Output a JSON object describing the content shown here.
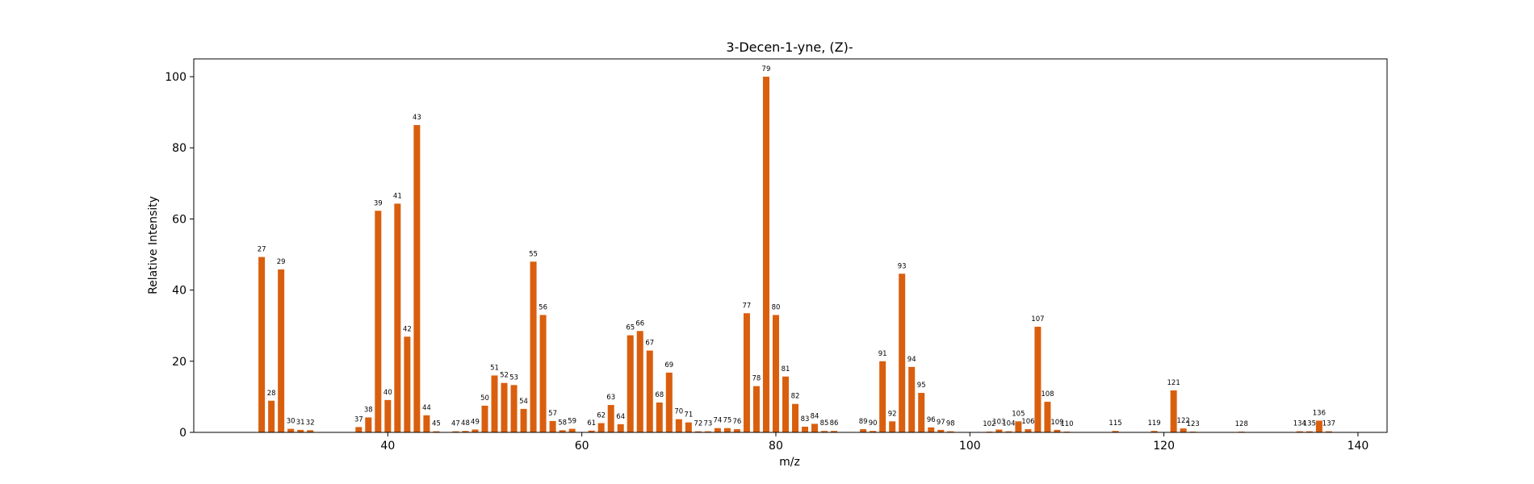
{
  "chart_data": {
    "type": "bar",
    "title": "3-Decen-1-yne, (Z)-",
    "xlabel": "m/z",
    "ylabel": "Relative Intensity",
    "xlim": [
      20,
      143
    ],
    "ylim": [
      0,
      105
    ],
    "xticks": [
      40,
      60,
      80,
      100,
      120,
      140
    ],
    "yticks": [
      0,
      20,
      40,
      60,
      80,
      100
    ],
    "grid": false,
    "bar_color": "#d95f0e",
    "points": [
      {
        "x": 27,
        "y": 49.3
      },
      {
        "x": 28,
        "y": 8.9
      },
      {
        "x": 29,
        "y": 45.8
      },
      {
        "x": 30,
        "y": 1.0
      },
      {
        "x": 31,
        "y": 0.7
      },
      {
        "x": 32,
        "y": 0.6
      },
      {
        "x": 37,
        "y": 1.5
      },
      {
        "x": 38,
        "y": 4.2
      },
      {
        "x": 39,
        "y": 62.3
      },
      {
        "x": 40,
        "y": 9.1
      },
      {
        "x": 41,
        "y": 64.3
      },
      {
        "x": 42,
        "y": 26.9
      },
      {
        "x": 43,
        "y": 86.4
      },
      {
        "x": 44,
        "y": 4.8
      },
      {
        "x": 45,
        "y": 0.3
      },
      {
        "x": 47,
        "y": 0.3
      },
      {
        "x": 48,
        "y": 0.4
      },
      {
        "x": 49,
        "y": 0.8
      },
      {
        "x": 50,
        "y": 7.5
      },
      {
        "x": 51,
        "y": 16.0
      },
      {
        "x": 52,
        "y": 13.9
      },
      {
        "x": 53,
        "y": 13.3
      },
      {
        "x": 54,
        "y": 6.6
      },
      {
        "x": 55,
        "y": 48.0
      },
      {
        "x": 56,
        "y": 33.0
      },
      {
        "x": 57,
        "y": 3.2
      },
      {
        "x": 58,
        "y": 0.6
      },
      {
        "x": 59,
        "y": 1.0
      },
      {
        "x": 61,
        "y": 0.5
      },
      {
        "x": 62,
        "y": 2.6
      },
      {
        "x": 63,
        "y": 7.7
      },
      {
        "x": 64,
        "y": 2.3
      },
      {
        "x": 65,
        "y": 27.3
      },
      {
        "x": 66,
        "y": 28.5
      },
      {
        "x": 67,
        "y": 23.0
      },
      {
        "x": 68,
        "y": 8.4
      },
      {
        "x": 69,
        "y": 16.8
      },
      {
        "x": 70,
        "y": 3.7
      },
      {
        "x": 71,
        "y": 2.8
      },
      {
        "x": 72,
        "y": 0.3
      },
      {
        "x": 73,
        "y": 0.3
      },
      {
        "x": 74,
        "y": 1.2
      },
      {
        "x": 75,
        "y": 1.2
      },
      {
        "x": 76,
        "y": 0.9
      },
      {
        "x": 77,
        "y": 33.5
      },
      {
        "x": 78,
        "y": 13.0
      },
      {
        "x": 79,
        "y": 100.0
      },
      {
        "x": 80,
        "y": 33.0
      },
      {
        "x": 81,
        "y": 15.7
      },
      {
        "x": 82,
        "y": 8.0
      },
      {
        "x": 83,
        "y": 1.6
      },
      {
        "x": 84,
        "y": 2.4
      },
      {
        "x": 85,
        "y": 0.4
      },
      {
        "x": 86,
        "y": 0.4
      },
      {
        "x": 89,
        "y": 0.9
      },
      {
        "x": 90,
        "y": 0.4
      },
      {
        "x": 91,
        "y": 20.0
      },
      {
        "x": 92,
        "y": 3.1
      },
      {
        "x": 93,
        "y": 44.6
      },
      {
        "x": 94,
        "y": 18.4
      },
      {
        "x": 95,
        "y": 11.1
      },
      {
        "x": 96,
        "y": 1.4
      },
      {
        "x": 97,
        "y": 0.7
      },
      {
        "x": 98,
        "y": 0.3
      },
      {
        "x": 102,
        "y": 0.2
      },
      {
        "x": 103,
        "y": 0.8
      },
      {
        "x": 104,
        "y": 0.3
      },
      {
        "x": 105,
        "y": 3.1
      },
      {
        "x": 106,
        "y": 0.9
      },
      {
        "x": 107,
        "y": 29.7
      },
      {
        "x": 108,
        "y": 8.6
      },
      {
        "x": 109,
        "y": 0.7
      },
      {
        "x": 110,
        "y": 0.2
      },
      {
        "x": 115,
        "y": 0.4
      },
      {
        "x": 119,
        "y": 0.4
      },
      {
        "x": 121,
        "y": 11.8
      },
      {
        "x": 122,
        "y": 1.1
      },
      {
        "x": 123,
        "y": 0.2
      },
      {
        "x": 128,
        "y": 0.2
      },
      {
        "x": 134,
        "y": 0.3
      },
      {
        "x": 135,
        "y": 0.3
      },
      {
        "x": 136,
        "y": 3.3
      },
      {
        "x": 137,
        "y": 0.3
      }
    ]
  }
}
